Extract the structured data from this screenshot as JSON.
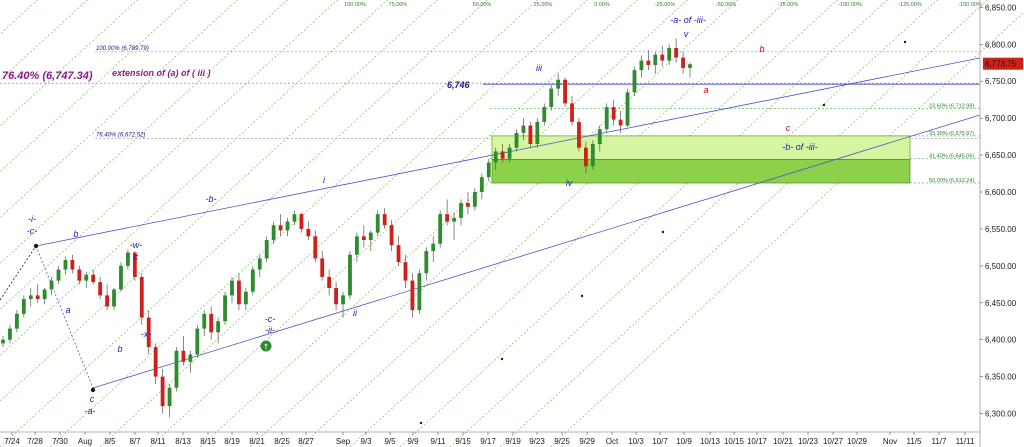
{
  "chart_data": {
    "type": "candlestick",
    "x_ticks": [
      "7/24",
      "7/28",
      "7/30",
      "Aug",
      "8/5",
      "8/7",
      "8/11",
      "8/13",
      "8/15",
      "8/19",
      "8/21",
      "8/25",
      "8/27",
      "Sep",
      "9/3",
      "9/5",
      "9/9",
      "9/11",
      "9/15",
      "9/17",
      "9/19",
      "9/23",
      "9/25",
      "9/29",
      "Oct",
      "10/3",
      "10/7",
      "10/9",
      "10/13",
      "10/15",
      "10/17",
      "10/21",
      "10/23",
      "10/27",
      "10/29",
      "Nov",
      "11/5",
      "11/7",
      "11/11"
    ],
    "y_ticks": [
      "6,300.00",
      "6,350.00",
      "6,400.00",
      "6,450.00",
      "6,500.00",
      "6,550.00",
      "6,600.00",
      "6,650.00",
      "6,700.00",
      "6,750.00",
      "6,800.00",
      "6,850.00"
    ],
    "ylim": [
      6275,
      6860
    ],
    "last_price": "6,773.75",
    "fib_fan_labels": [
      "100.00%",
      "75.00%",
      "50.00%",
      "25.00%",
      "0.00%",
      "-25.00%",
      "-50.00%",
      "-75.00%",
      "-100.00%",
      "-125.00%",
      "-150.00%"
    ],
    "fib_levels": [
      {
        "label": "23.60% (6,712.98)",
        "value": 6712.98
      },
      {
        "label": "33.30% (6,675.97)",
        "value": 6675.97
      },
      {
        "label": "41.40% (6,645.06)",
        "value": 6645.06
      },
      {
        "label": "50.00% (6,612.24)",
        "value": 6612.24
      }
    ],
    "extension_levels": [
      {
        "label": "100.00% (6,789.79)",
        "value": 6789.79
      },
      {
        "label": "76.40% (6,672.52)",
        "value": 6672.52
      }
    ],
    "left_annotation": {
      "label": "76.40% (6,747.34)",
      "value": 6747.34
    },
    "extension_text": "extension of (a) of ( iii )",
    "level_6746": {
      "label": "6,746",
      "value": 6746
    },
    "support_zone": {
      "from": 6612.24,
      "to": 6675.97
    },
    "wave_labels": [
      {
        "text": "-i-",
        "color": "blue"
      },
      {
        "text": "-c-",
        "color": "blue"
      },
      {
        "text": "b",
        "color": "blue"
      },
      {
        "text": "a",
        "color": "blue"
      },
      {
        "text": "-w-",
        "color": "blue"
      },
      {
        "text": "c",
        "color": "blue"
      },
      {
        "text": "b",
        "color": "blue"
      },
      {
        "text": "-x-",
        "color": "blue"
      },
      {
        "text": "c",
        "color": "blue"
      },
      {
        "text": "-a-",
        "color": "blue"
      },
      {
        "text": "-b-",
        "color": "blue"
      },
      {
        "text": "-c-",
        "color": "blue"
      },
      {
        "text": "-ii-",
        "color": "blue"
      },
      {
        "text": "i",
        "color": "blue"
      },
      {
        "text": "ii",
        "color": "blue"
      },
      {
        "text": "iii",
        "color": "blue"
      },
      {
        "text": "iv",
        "color": "blue"
      },
      {
        "text": "v",
        "color": "blue"
      },
      {
        "text": "-a- of -iii-",
        "color": "blue"
      },
      {
        "text": "-b- of -iii-",
        "color": "blue"
      },
      {
        "text": "a",
        "color": "red"
      },
      {
        "text": "b",
        "color": "red"
      },
      {
        "text": "c",
        "color": "red"
      }
    ],
    "candles": [
      [
        6395,
        6405,
        6390,
        6400
      ],
      [
        6400,
        6420,
        6395,
        6415
      ],
      [
        6415,
        6440,
        6410,
        6435
      ],
      [
        6435,
        6460,
        6430,
        6455
      ],
      [
        6455,
        6470,
        6445,
        6460
      ],
      [
        6460,
        6475,
        6450,
        6455
      ],
      [
        6455,
        6470,
        6448,
        6468
      ],
      [
        6468,
        6485,
        6460,
        6480
      ],
      [
        6480,
        6500,
        6475,
        6495
      ],
      [
        6495,
        6512,
        6488,
        6508
      ],
      [
        6508,
        6515,
        6490,
        6495
      ],
      [
        6495,
        6500,
        6475,
        6480
      ],
      [
        6480,
        6492,
        6470,
        6488
      ],
      [
        6488,
        6495,
        6475,
        6478
      ],
      [
        6478,
        6485,
        6455,
        6460
      ],
      [
        6460,
        6475,
        6440,
        6445
      ],
      [
        6445,
        6470,
        6440,
        6468
      ],
      [
        6468,
        6505,
        6465,
        6500
      ],
      [
        6500,
        6522,
        6495,
        6518
      ],
      [
        6518,
        6520,
        6480,
        6485
      ],
      [
        6485,
        6490,
        6420,
        6430
      ],
      [
        6430,
        6440,
        6380,
        6390
      ],
      [
        6390,
        6395,
        6340,
        6350
      ],
      [
        6350,
        6360,
        6300,
        6310
      ],
      [
        6310,
        6340,
        6295,
        6335
      ],
      [
        6335,
        6390,
        6330,
        6385
      ],
      [
        6385,
        6405,
        6365,
        6370
      ],
      [
        6370,
        6385,
        6355,
        6380
      ],
      [
        6380,
        6420,
        6375,
        6415
      ],
      [
        6415,
        6440,
        6405,
        6435
      ],
      [
        6435,
        6445,
        6400,
        6410
      ],
      [
        6410,
        6430,
        6395,
        6425
      ],
      [
        6425,
        6465,
        6420,
        6460
      ],
      [
        6460,
        6485,
        6450,
        6480
      ],
      [
        6480,
        6490,
        6440,
        6448
      ],
      [
        6448,
        6470,
        6440,
        6465
      ],
      [
        6465,
        6500,
        6460,
        6495
      ],
      [
        6495,
        6515,
        6485,
        6510
      ],
      [
        6510,
        6540,
        6505,
        6535
      ],
      [
        6535,
        6560,
        6530,
        6555
      ],
      [
        6555,
        6570,
        6540,
        6548
      ],
      [
        6548,
        6565,
        6540,
        6560
      ],
      [
        6560,
        6575,
        6555,
        6570
      ],
      [
        6570,
        6572,
        6545,
        6550
      ],
      [
        6550,
        6560,
        6535,
        6540
      ],
      [
        6540,
        6548,
        6505,
        6510
      ],
      [
        6510,
        6520,
        6480,
        6485
      ],
      [
        6485,
        6495,
        6460,
        6470
      ],
      [
        6470,
        6478,
        6440,
        6448
      ],
      [
        6448,
        6465,
        6430,
        6460
      ],
      [
        6460,
        6520,
        6455,
        6515
      ],
      [
        6515,
        6545,
        6505,
        6540
      ],
      [
        6540,
        6555,
        6525,
        6535
      ],
      [
        6535,
        6548,
        6520,
        6545
      ],
      [
        6545,
        6575,
        6540,
        6570
      ],
      [
        6570,
        6578,
        6550,
        6555
      ],
      [
        6555,
        6562,
        6520,
        6528
      ],
      [
        6528,
        6540,
        6500,
        6505
      ],
      [
        6505,
        6515,
        6470,
        6480
      ],
      [
        6480,
        6490,
        6430,
        6440
      ],
      [
        6440,
        6495,
        6435,
        6490
      ],
      [
        6490,
        6525,
        6480,
        6520
      ],
      [
        6520,
        6540,
        6505,
        6530
      ],
      [
        6530,
        6575,
        6525,
        6570
      ],
      [
        6570,
        6590,
        6555,
        6560
      ],
      [
        6560,
        6572,
        6535,
        6565
      ],
      [
        6565,
        6590,
        6555,
        6585
      ],
      [
        6585,
        6600,
        6570,
        6580
      ],
      [
        6580,
        6605,
        6575,
        6600
      ],
      [
        6600,
        6625,
        6590,
        6620
      ],
      [
        6620,
        6645,
        6615,
        6640
      ],
      [
        6640,
        6660,
        6630,
        6655
      ],
      [
        6655,
        6665,
        6640,
        6645
      ],
      [
        6645,
        6665,
        6640,
        6660
      ],
      [
        6660,
        6685,
        6655,
        6680
      ],
      [
        6680,
        6700,
        6670,
        6690
      ],
      [
        6690,
        6695,
        6660,
        6665
      ],
      [
        6665,
        6700,
        6660,
        6695
      ],
      [
        6695,
        6720,
        6690,
        6715
      ],
      [
        6715,
        6745,
        6710,
        6740
      ],
      [
        6740,
        6760,
        6730,
        6752
      ],
      [
        6752,
        6755,
        6715,
        6720
      ],
      [
        6720,
        6730,
        6690,
        6695
      ],
      [
        6695,
        6700,
        6655,
        6660
      ],
      [
        6660,
        6668,
        6625,
        6635
      ],
      [
        6635,
        6670,
        6630,
        6665
      ],
      [
        6665,
        6690,
        6655,
        6685
      ],
      [
        6685,
        6720,
        6680,
        6715
      ],
      [
        6715,
        6725,
        6690,
        6698
      ],
      [
        6698,
        6710,
        6680,
        6690
      ],
      [
        6690,
        6740,
        6688,
        6735
      ],
      [
        6735,
        6770,
        6730,
        6765
      ],
      [
        6765,
        6785,
        6755,
        6778
      ],
      [
        6778,
        6792,
        6765,
        6772
      ],
      [
        6772,
        6790,
        6760,
        6786
      ],
      [
        6786,
        6798,
        6770,
        6778
      ],
      [
        6778,
        6800,
        6772,
        6795
      ],
      [
        6795,
        6808,
        6775,
        6782
      ],
      [
        6782,
        6790,
        6760,
        6768
      ],
      [
        6768,
        6775,
        6755,
        6773
      ]
    ]
  }
}
